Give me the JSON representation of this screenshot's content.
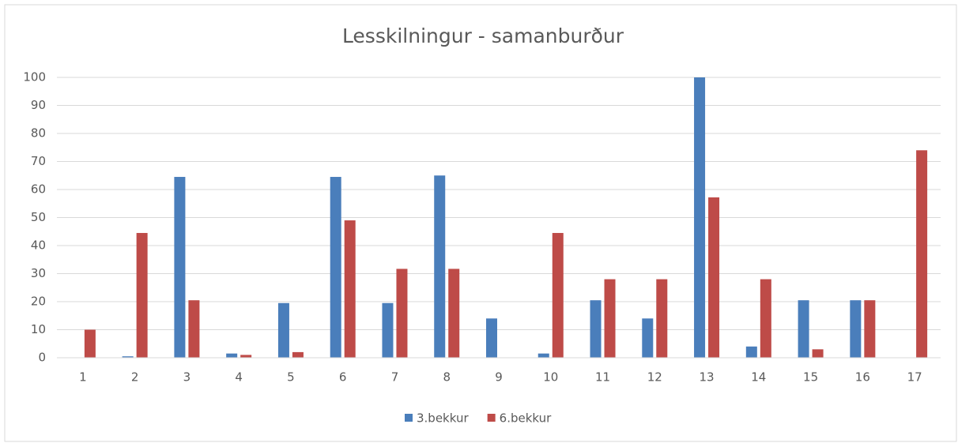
{
  "chart_data": {
    "type": "bar",
    "title": "Lesskilningur - samanburður",
    "categories": [
      "1",
      "2",
      "3",
      "4",
      "5",
      "6",
      "7",
      "8",
      "9",
      "10",
      "11",
      "12",
      "13",
      "14",
      "15",
      "16",
      "17"
    ],
    "series": [
      {
        "name": "3.bekkur",
        "color": "#4a7ebb",
        "values": [
          0,
          0.5,
          64.5,
          1.5,
          19.5,
          64.5,
          19.5,
          65,
          14,
          1.5,
          20.5,
          14,
          100,
          4,
          20.5,
          20.5,
          0
        ]
      },
      {
        "name": "6.bekkur",
        "color": "#be4b48",
        "values": [
          10,
          44.5,
          20.5,
          1,
          2,
          49,
          31.7,
          31.7,
          0,
          44.5,
          28,
          28,
          57.2,
          28,
          3,
          20.5,
          74
        ]
      }
    ],
    "ylim": [
      0,
      100
    ],
    "yticks": [
      0,
      10,
      20,
      30,
      40,
      50,
      60,
      70,
      80,
      90,
      100
    ],
    "grid": true,
    "legend": "bottom"
  }
}
